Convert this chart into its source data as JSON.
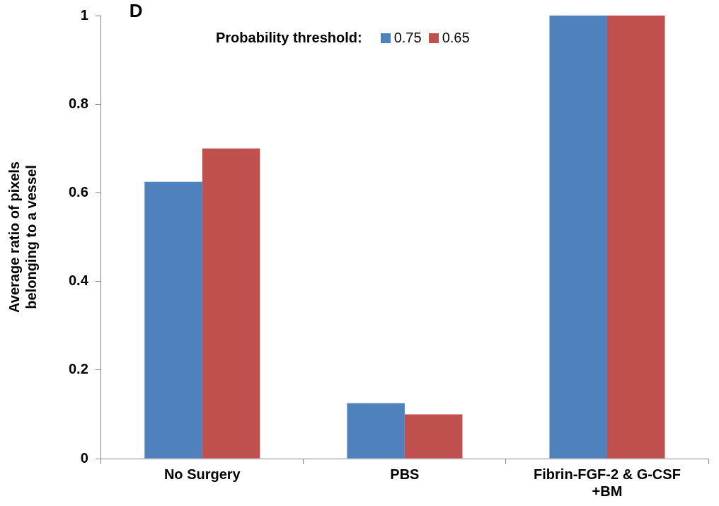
{
  "chart_data": {
    "type": "bar",
    "ylabel": "Average ratio of pixels\nbelonging to a vessel",
    "legend_title": "Probability threshold:",
    "legend": "top",
    "annotations": [
      "D"
    ],
    "categories": [
      "No Surgery",
      "PBS",
      "Fibrin-FGF-2 & G-CSF\n+BM"
    ],
    "series": [
      {
        "name": "0.75",
        "color": "#4f81bd",
        "values": [
          0.625,
          0.125,
          1
        ]
      },
      {
        "name": "0.65",
        "color": "#c0504d",
        "values": [
          0.7,
          0.1,
          1
        ]
      }
    ],
    "ylim": [
      0,
      1
    ],
    "yticks": [
      0,
      0.2,
      0.4,
      0.6,
      0.8,
      1
    ],
    "grid": false
  }
}
